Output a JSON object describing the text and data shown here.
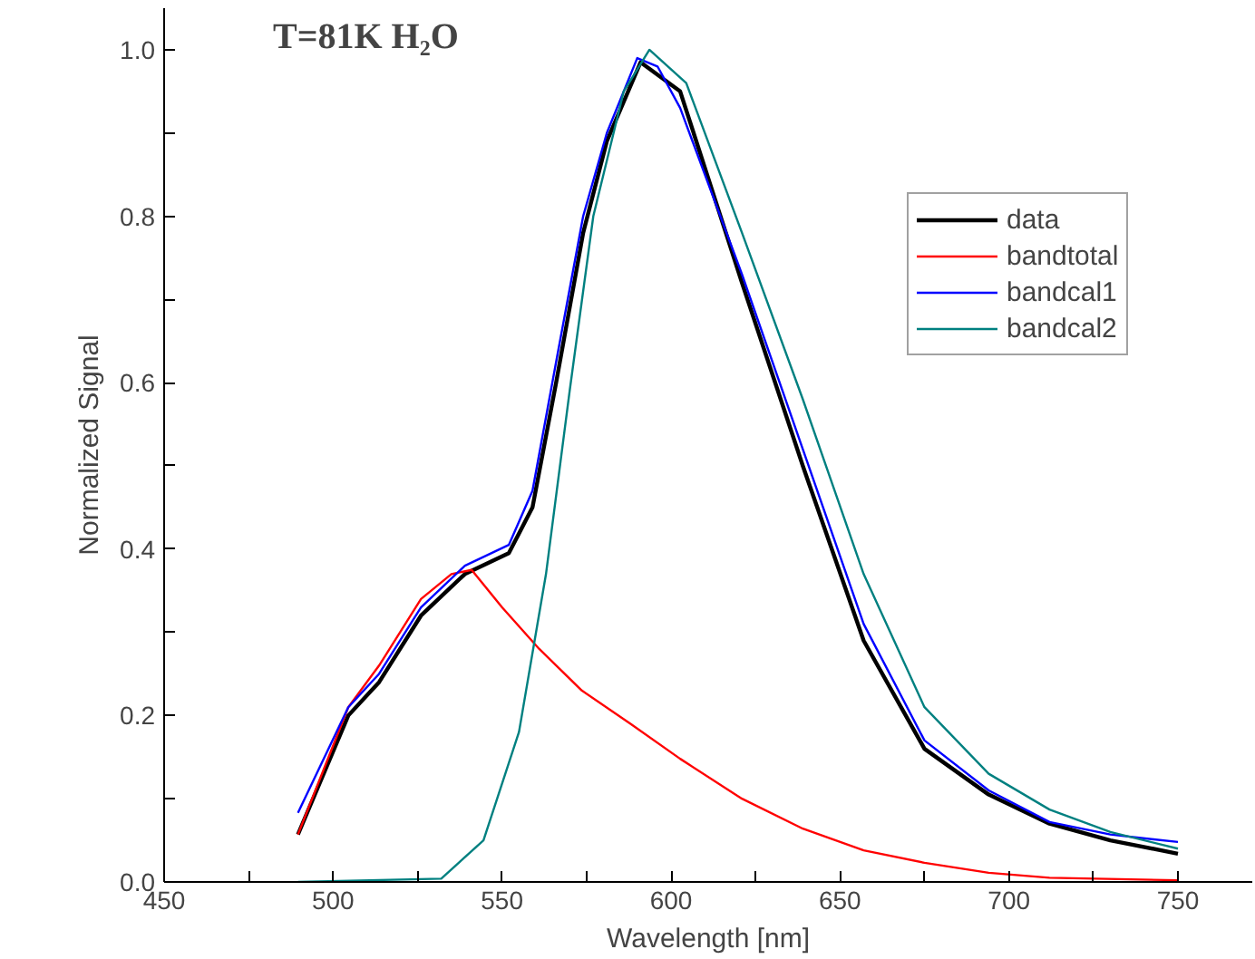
{
  "chart_data": {
    "type": "line",
    "title": "T=81K H₂O",
    "xlabel": "Wavelength [nm]",
    "ylabel": "Normalized Signal",
    "xlim": [
      450,
      772
    ],
    "ylim": [
      0,
      1.05
    ],
    "xticks": [
      450,
      {
        "value": 475,
        "label": null
      },
      500,
      {
        "value": 525,
        "label": null
      },
      550,
      {
        "value": 575,
        "label": null
      },
      600,
      {
        "value": 625,
        "label": null
      },
      650,
      {
        "value": 675,
        "label": null
      },
      700,
      {
        "value": 725,
        "label": null
      },
      750
    ],
    "yticks": [
      {
        "value": 0,
        "label": "0.0"
      },
      {
        "value": 0.1,
        "label": null
      },
      {
        "value": 0.2,
        "label": "0.2"
      },
      {
        "value": 0.3,
        "label": null
      },
      {
        "value": 0.4,
        "label": "0.4"
      },
      {
        "value": 0.5,
        "label": null
      },
      {
        "value": 0.6,
        "label": "0.6"
      },
      {
        "value": 0.7,
        "label": null
      },
      {
        "value": 0.8,
        "label": "0.8"
      },
      {
        "value": 0.9,
        "label": null
      },
      {
        "value": 1.0,
        "label": "1.0"
      }
    ],
    "grid": false,
    "legend": "top right",
    "marker": "none",
    "line_style": "solid",
    "series": [
      {
        "name": "data",
        "color": "#000000",
        "x": [
          489.6,
          504.5,
          513.6,
          526,
          539,
          552,
          559,
          566,
          574,
          581,
          591,
          602.7,
          621,
          639,
          657,
          675,
          694,
          712,
          730,
          750
        ],
        "values": [
          0.057,
          0.2,
          0.24,
          0.32,
          0.37,
          0.395,
          0.45,
          0.6,
          0.78,
          0.89,
          0.985,
          0.95,
          0.72,
          0.5,
          0.29,
          0.16,
          0.105,
          0.07,
          0.05,
          0.034
        ]
      },
      {
        "name": "bandtotal",
        "color": "#ff0000",
        "x": [
          489.6,
          504.5,
          513.6,
          526,
          535,
          541,
          550,
          561,
          573.6,
          588,
          602.7,
          621,
          639,
          657,
          675,
          694,
          712,
          750
        ],
        "values": [
          0.057,
          0.21,
          0.26,
          0.34,
          0.37,
          0.375,
          0.33,
          0.28,
          0.23,
          0.19,
          0.148,
          0.1,
          0.064,
          0.038,
          0.023,
          0.011,
          0.005,
          0.002
        ]
      },
      {
        "name": "bandcal1",
        "color": "#0000ff",
        "x": [
          489.6,
          504.5,
          513.6,
          526,
          539,
          552,
          559,
          566,
          574,
          581,
          590,
          596,
          602.7,
          621,
          639,
          657,
          675,
          694,
          712,
          730,
          750
        ],
        "values": [
          0.083,
          0.21,
          0.25,
          0.33,
          0.38,
          0.405,
          0.47,
          0.625,
          0.8,
          0.9,
          0.99,
          0.98,
          0.93,
          0.73,
          0.52,
          0.31,
          0.17,
          0.11,
          0.072,
          0.057,
          0.048
        ]
      },
      {
        "name": "bandcal2",
        "color": "#008080",
        "x": [
          489.6,
          532,
          544.5,
          555,
          563,
          570,
          577,
          586,
          593.6,
          604.5,
          621,
          639,
          657,
          675,
          694,
          712,
          730,
          750
        ],
        "values": [
          0,
          0.004,
          0.05,
          0.18,
          0.37,
          0.59,
          0.8,
          0.95,
          1.0,
          0.96,
          0.78,
          0.58,
          0.37,
          0.21,
          0.13,
          0.087,
          0.06,
          0.04
        ]
      }
    ]
  }
}
